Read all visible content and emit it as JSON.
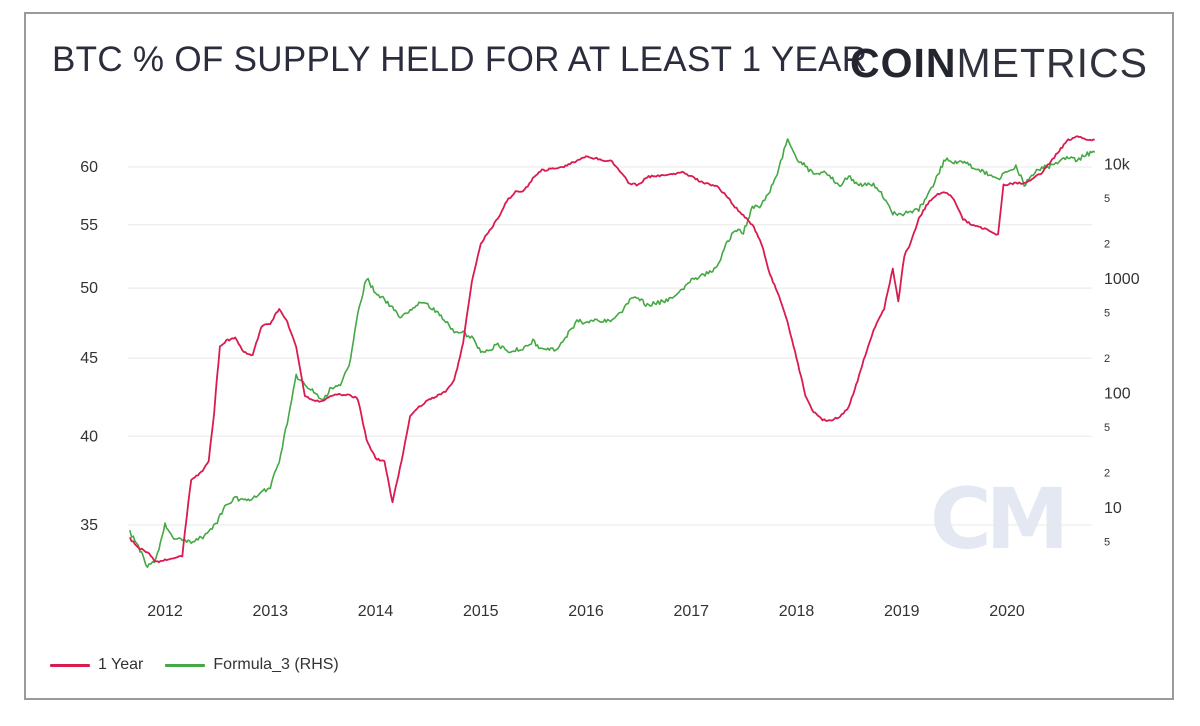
{
  "title": "BTC % OF SUPPLY HELD FOR AT LEAST 1 YEAR",
  "logo": {
    "bold": "COIN",
    "light": "METRICS"
  },
  "watermark": "CM",
  "colors": {
    "series_1year": "#d91b4f",
    "series_formula3": "#44a844",
    "grid": "#e8e8e8",
    "axis_text": "#333333"
  },
  "chart_data": {
    "type": "line",
    "title": "BTC % OF SUPPLY HELD FOR AT LEAST 1 YEAR",
    "x_ticks": [
      "2012",
      "2013",
      "2014",
      "2015",
      "2016",
      "2017",
      "2018",
      "2019",
      "2020"
    ],
    "left_axis": {
      "scale": "log",
      "ticks": [
        "35",
        "40",
        "45",
        "50",
        "55",
        "60"
      ],
      "ylim": [
        32.5,
        64.5
      ]
    },
    "right_axis": {
      "scale": "log",
      "ticks": [
        "5",
        "10",
        "2",
        "5",
        "100",
        "2",
        "5",
        "1000",
        "2",
        "5",
        "10k"
      ],
      "ylim": [
        1.5,
        50000
      ]
    },
    "grid": true,
    "legend_position": "bottom-left",
    "series": [
      {
        "name": "1 Year",
        "axis": "left",
        "points": [
          [
            "2011-09-01",
            34.3
          ],
          [
            "2011-10-01",
            33.8
          ],
          [
            "2011-11-01",
            33.6
          ],
          [
            "2011-12-01",
            33.1
          ],
          [
            "2012-01-01",
            33.2
          ],
          [
            "2012-02-01",
            33.3
          ],
          [
            "2012-03-01",
            33.4
          ],
          [
            "2012-04-01",
            37.5
          ],
          [
            "2012-05-01",
            37.8
          ],
          [
            "2012-06-01",
            38.5
          ],
          [
            "2012-06-20",
            41.5
          ],
          [
            "2012-07-10",
            45.8
          ],
          [
            "2012-08-01",
            46.2
          ],
          [
            "2012-09-01",
            46.4
          ],
          [
            "2012-10-01",
            45.4
          ],
          [
            "2012-11-01",
            45.2
          ],
          [
            "2012-12-01",
            47.2
          ],
          [
            "2013-01-01",
            47.4
          ],
          [
            "2013-02-01",
            48.5
          ],
          [
            "2013-03-01",
            47.5
          ],
          [
            "2013-04-01",
            45.8
          ],
          [
            "2013-05-01",
            42.5
          ],
          [
            "2013-06-01",
            42.2
          ],
          [
            "2013-07-01",
            42.2
          ],
          [
            "2013-08-01",
            42.5
          ],
          [
            "2013-09-01",
            42.6
          ],
          [
            "2013-10-01",
            42.6
          ],
          [
            "2013-11-01",
            42.3
          ],
          [
            "2013-12-01",
            39.8
          ],
          [
            "2014-01-01",
            38.7
          ],
          [
            "2014-02-01",
            38.5
          ],
          [
            "2014-03-01",
            36.2
          ],
          [
            "2014-04-01",
            38.5
          ],
          [
            "2014-05-01",
            41.2
          ],
          [
            "2014-06-01",
            41.8
          ],
          [
            "2014-07-01",
            42.2
          ],
          [
            "2014-08-01",
            42.5
          ],
          [
            "2014-09-01",
            42.8
          ],
          [
            "2014-10-01",
            43.5
          ],
          [
            "2014-11-01",
            46.0
          ],
          [
            "2014-12-01",
            50.5
          ],
          [
            "2015-01-01",
            53.5
          ],
          [
            "2015-02-01",
            54.5
          ],
          [
            "2015-03-01",
            55.5
          ],
          [
            "2015-04-01",
            57.0
          ],
          [
            "2015-05-01",
            57.8
          ],
          [
            "2015-06-01",
            57.9
          ],
          [
            "2015-07-01",
            59.0
          ],
          [
            "2015-08-01",
            59.7
          ],
          [
            "2015-09-01",
            59.8
          ],
          [
            "2015-10-01",
            59.9
          ],
          [
            "2015-11-01",
            60.2
          ],
          [
            "2015-12-01",
            60.6
          ],
          [
            "2016-01-01",
            60.9
          ],
          [
            "2016-02-01",
            60.8
          ],
          [
            "2016-03-01",
            60.6
          ],
          [
            "2016-04-01",
            60.5
          ],
          [
            "2016-05-01",
            59.5
          ],
          [
            "2016-06-01",
            58.5
          ],
          [
            "2016-07-01",
            58.4
          ],
          [
            "2016-08-01",
            59.1
          ],
          [
            "2016-09-01",
            59.2
          ],
          [
            "2016-10-01",
            59.3
          ],
          [
            "2016-11-01",
            59.4
          ],
          [
            "2016-12-01",
            59.5
          ],
          [
            "2017-01-01",
            59.2
          ],
          [
            "2017-02-01",
            58.7
          ],
          [
            "2017-03-01",
            58.5
          ],
          [
            "2017-04-01",
            58.3
          ],
          [
            "2017-05-01",
            57.5
          ],
          [
            "2017-06-01",
            56.5
          ],
          [
            "2017-07-01",
            55.8
          ],
          [
            "2017-08-01",
            55.0
          ],
          [
            "2017-09-01",
            53.5
          ],
          [
            "2017-10-01",
            51.0
          ],
          [
            "2017-11-01",
            49.5
          ],
          [
            "2017-12-01",
            47.5
          ],
          [
            "2018-01-01",
            45.0
          ],
          [
            "2018-02-01",
            42.5
          ],
          [
            "2018-03-01",
            41.5
          ],
          [
            "2018-04-01",
            41.0
          ],
          [
            "2018-05-01",
            41.0
          ],
          [
            "2018-06-01",
            41.2
          ],
          [
            "2018-07-01",
            41.8
          ],
          [
            "2018-08-01",
            43.5
          ],
          [
            "2018-09-01",
            45.5
          ],
          [
            "2018-10-01",
            47.2
          ],
          [
            "2018-11-01",
            48.5
          ],
          [
            "2018-12-01",
            51.5
          ],
          [
            "2018-12-20",
            49.0
          ],
          [
            "2019-01-10",
            52.5
          ],
          [
            "2019-02-01",
            53.5
          ],
          [
            "2019-03-01",
            55.5
          ],
          [
            "2019-04-01",
            56.8
          ],
          [
            "2019-05-01",
            57.5
          ],
          [
            "2019-06-01",
            57.8
          ],
          [
            "2019-07-01",
            57.2
          ],
          [
            "2019-08-01",
            55.5
          ],
          [
            "2019-09-01",
            55.0
          ],
          [
            "2019-10-01",
            54.8
          ],
          [
            "2019-11-01",
            54.5
          ],
          [
            "2019-12-01",
            54.2
          ],
          [
            "2019-12-20",
            58.5
          ],
          [
            "2020-01-01",
            58.4
          ],
          [
            "2020-02-01",
            58.6
          ],
          [
            "2020-03-01",
            58.5
          ],
          [
            "2020-04-01",
            59.0
          ],
          [
            "2020-05-01",
            59.5
          ],
          [
            "2020-06-01",
            60.5
          ],
          [
            "2020-07-01",
            61.5
          ],
          [
            "2020-08-01",
            62.5
          ],
          [
            "2020-09-01",
            62.8
          ],
          [
            "2020-10-01",
            62.6
          ],
          [
            "2020-11-01",
            62.5
          ]
        ]
      },
      {
        "name": "Formula_3 (RHS)",
        "axis": "right",
        "points": [
          [
            "2011-09-01",
            6
          ],
          [
            "2011-10-01",
            4.5
          ],
          [
            "2011-11-01",
            3
          ],
          [
            "2011-12-01",
            3.5
          ],
          [
            "2012-01-01",
            7
          ],
          [
            "2012-02-01",
            5.3
          ],
          [
            "2012-03-01",
            5.2
          ],
          [
            "2012-04-01",
            5
          ],
          [
            "2012-05-01",
            5.3
          ],
          [
            "2012-06-01",
            6
          ],
          [
            "2012-07-01",
            7.5
          ],
          [
            "2012-08-01",
            10.5
          ],
          [
            "2012-09-01",
            12
          ],
          [
            "2012-10-01",
            11.5
          ],
          [
            "2012-11-01",
            11.8
          ],
          [
            "2012-12-01",
            13.5
          ],
          [
            "2013-01-01",
            15
          ],
          [
            "2013-02-01",
            25
          ],
          [
            "2013-03-01",
            55
          ],
          [
            "2013-04-01",
            140
          ],
          [
            "2013-05-01",
            120
          ],
          [
            "2013-06-01",
            100
          ],
          [
            "2013-07-01",
            85
          ],
          [
            "2013-08-01",
            110
          ],
          [
            "2013-09-01",
            115
          ],
          [
            "2013-10-01",
            170
          ],
          [
            "2013-11-01",
            500
          ],
          [
            "2013-12-01",
            1000
          ],
          [
            "2014-01-01",
            750
          ],
          [
            "2014-02-01",
            650
          ],
          [
            "2014-03-01",
            550
          ],
          [
            "2014-04-01",
            450
          ],
          [
            "2014-05-01",
            520
          ],
          [
            "2014-06-01",
            600
          ],
          [
            "2014-07-01",
            580
          ],
          [
            "2014-08-01",
            500
          ],
          [
            "2014-09-01",
            420
          ],
          [
            "2014-10-01",
            340
          ],
          [
            "2014-11-01",
            330
          ],
          [
            "2014-12-01",
            300
          ],
          [
            "2015-01-01",
            230
          ],
          [
            "2015-02-01",
            240
          ],
          [
            "2015-03-01",
            260
          ],
          [
            "2015-04-01",
            230
          ],
          [
            "2015-05-01",
            235
          ],
          [
            "2015-06-01",
            245
          ],
          [
            "2015-07-01",
            280
          ],
          [
            "2015-08-01",
            240
          ],
          [
            "2015-09-01",
            235
          ],
          [
            "2015-10-01",
            250
          ],
          [
            "2015-11-01",
            330
          ],
          [
            "2015-12-01",
            420
          ],
          [
            "2016-01-01",
            410
          ],
          [
            "2016-02-01",
            420
          ],
          [
            "2016-03-01",
            415
          ],
          [
            "2016-04-01",
            440
          ],
          [
            "2016-05-01",
            500
          ],
          [
            "2016-06-01",
            650
          ],
          [
            "2016-07-01",
            660
          ],
          [
            "2016-08-01",
            580
          ],
          [
            "2016-09-01",
            600
          ],
          [
            "2016-10-01",
            630
          ],
          [
            "2016-11-01",
            700
          ],
          [
            "2016-12-01",
            800
          ],
          [
            "2017-01-01",
            950
          ],
          [
            "2017-02-01",
            1050
          ],
          [
            "2017-03-01",
            1100
          ],
          [
            "2017-04-01",
            1250
          ],
          [
            "2017-05-01",
            2000
          ],
          [
            "2017-06-01",
            2600
          ],
          [
            "2017-07-01",
            2500
          ],
          [
            "2017-08-01",
            4200
          ],
          [
            "2017-09-01",
            4300
          ],
          [
            "2017-10-01",
            5800
          ],
          [
            "2017-11-01",
            9000
          ],
          [
            "2017-12-01",
            17000
          ],
          [
            "2018-01-01",
            11000
          ],
          [
            "2018-02-01",
            9500
          ],
          [
            "2018-03-01",
            8000
          ],
          [
            "2018-04-01",
            8500
          ],
          [
            "2018-05-01",
            7500
          ],
          [
            "2018-06-01",
            6500
          ],
          [
            "2018-07-01",
            7800
          ],
          [
            "2018-08-01",
            6500
          ],
          [
            "2018-09-01",
            6600
          ],
          [
            "2018-10-01",
            6400
          ],
          [
            "2018-11-01",
            5000
          ],
          [
            "2018-12-01",
            3700
          ],
          [
            "2019-01-01",
            3600
          ],
          [
            "2019-02-01",
            3800
          ],
          [
            "2019-03-01",
            4000
          ],
          [
            "2019-04-01",
            5200
          ],
          [
            "2019-05-01",
            7500
          ],
          [
            "2019-06-01",
            11000
          ],
          [
            "2019-07-01",
            10000
          ],
          [
            "2019-08-01",
            10500
          ],
          [
            "2019-09-01",
            9500
          ],
          [
            "2019-10-01",
            8800
          ],
          [
            "2019-11-01",
            8000
          ],
          [
            "2019-12-01",
            7300
          ],
          [
            "2020-01-01",
            8500
          ],
          [
            "2020-02-01",
            9600
          ],
          [
            "2020-03-01",
            6500
          ],
          [
            "2020-04-01",
            8000
          ],
          [
            "2020-05-01",
            9300
          ],
          [
            "2020-06-01",
            9500
          ],
          [
            "2020-07-01",
            10500
          ],
          [
            "2020-08-01",
            11500
          ],
          [
            "2020-09-01",
            10700
          ],
          [
            "2020-10-01",
            12000
          ],
          [
            "2020-11-01",
            12500
          ]
        ]
      }
    ]
  },
  "legend": [
    {
      "label": "1 Year",
      "color": "#d91b4f"
    },
    {
      "label": "Formula_3 (RHS)",
      "color": "#44a844"
    }
  ]
}
